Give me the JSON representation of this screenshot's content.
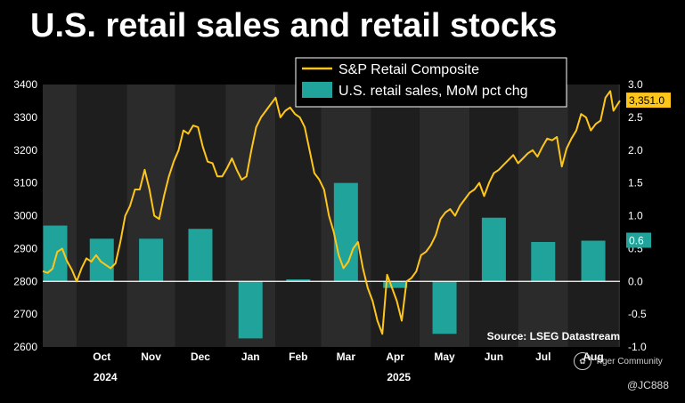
{
  "title": "U.S. retail sales and retail stocks",
  "chart_data": {
    "type": "bar+line",
    "title": "U.S. retail sales and retail stocks",
    "source": "Source: LSEG Datastream",
    "colors": {
      "line": "#ffc61a",
      "bar": "#1fa39a",
      "band_dark": "#1e1e1e",
      "band_light": "#2b2b2b",
      "zero_line": "#ffffff",
      "label_box": "#1fa39a",
      "price_box": "#ffc61a"
    },
    "left_axis": {
      "label": "S&P Retail Composite",
      "ylim": [
        2600,
        3400
      ],
      "ticks": [
        "2600",
        "2700",
        "2800",
        "2900",
        "3000",
        "3100",
        "3200",
        "3300",
        "3400"
      ]
    },
    "right_axis": {
      "label": "U.S. retail sales, MoM pct chg",
      "ylim": [
        -1.0,
        3.0
      ],
      "ticks": [
        "-1.0",
        "-0.5",
        "0.0",
        "0.5",
        "1.0",
        "1.5",
        "2.0",
        "2.5",
        "3.0"
      ]
    },
    "x_axis": {
      "start": "2024-09-10",
      "end": "2025-09-02",
      "month_labels": [
        "Oct",
        "Nov",
        "Dec",
        "Jan",
        "Feb",
        "Mar",
        "Apr",
        "May",
        "Jun",
        "Jul",
        "Aug"
      ],
      "year_labels": [
        {
          "label": "2024",
          "month": "Oct"
        },
        {
          "label": "2025",
          "month": "Apr"
        }
      ]
    },
    "legend": [
      {
        "label": "S&P Retail Composite",
        "kind": "line"
      },
      {
        "label": "U.S. retail sales, MoM pct chg",
        "kind": "bar"
      }
    ],
    "legend_position": "top-right",
    "series": [
      {
        "name": "U.S. retail sales, MoM pct chg",
        "kind": "bar",
        "axis": "right",
        "bars": [
          {
            "month": "Sep",
            "value": 0.85
          },
          {
            "month": "Oct",
            "value": 0.65
          },
          {
            "month": "Nov",
            "value": 0.65
          },
          {
            "month": "Dec",
            "value": 0.8
          },
          {
            "month": "Jan",
            "value": -0.87
          },
          {
            "month": "Feb",
            "value": 0.03
          },
          {
            "month": "Mar",
            "value": 1.5
          },
          {
            "month": "Apr",
            "value": -0.1
          },
          {
            "month": "May",
            "value": -0.8
          },
          {
            "month": "Jun",
            "value": 0.97
          },
          {
            "month": "Jul",
            "value": 0.6
          },
          {
            "month": "Aug",
            "value": 0.62
          }
        ],
        "last_value_label": "0.6"
      },
      {
        "name": "S&P Retail Composite",
        "kind": "line",
        "axis": "left",
        "points": [
          [
            "2024-09-10",
            2831
          ],
          [
            "2024-09-13",
            2826
          ],
          [
            "2024-09-16",
            2838
          ],
          [
            "2024-09-19",
            2890
          ],
          [
            "2024-09-22",
            2900
          ],
          [
            "2024-09-25",
            2862
          ],
          [
            "2024-09-28",
            2835
          ],
          [
            "2024-10-01",
            2800
          ],
          [
            "2024-10-04",
            2840
          ],
          [
            "2024-10-07",
            2870
          ],
          [
            "2024-10-10",
            2860
          ],
          [
            "2024-10-13",
            2880
          ],
          [
            "2024-10-16",
            2860
          ],
          [
            "2024-10-19",
            2850
          ],
          [
            "2024-10-22",
            2840
          ],
          [
            "2024-10-25",
            2855
          ],
          [
            "2024-10-28",
            2920
          ],
          [
            "2024-10-31",
            3000
          ],
          [
            "2024-11-03",
            3030
          ],
          [
            "2024-11-06",
            3080
          ],
          [
            "2024-11-09",
            3080
          ],
          [
            "2024-11-12",
            3140
          ],
          [
            "2024-11-15",
            3080
          ],
          [
            "2024-11-18",
            3000
          ],
          [
            "2024-11-21",
            2990
          ],
          [
            "2024-11-24",
            3060
          ],
          [
            "2024-11-27",
            3120
          ],
          [
            "2024-11-30",
            3165
          ],
          [
            "2024-12-03",
            3200
          ],
          [
            "2024-12-06",
            3260
          ],
          [
            "2024-12-09",
            3250
          ],
          [
            "2024-12-12",
            3275
          ],
          [
            "2024-12-15",
            3270
          ],
          [
            "2024-12-18",
            3210
          ],
          [
            "2024-12-21",
            3165
          ],
          [
            "2024-12-24",
            3160
          ],
          [
            "2024-12-27",
            3120
          ],
          [
            "2024-12-30",
            3120
          ],
          [
            "2025-01-02",
            3145
          ],
          [
            "2025-01-05",
            3175
          ],
          [
            "2025-01-08",
            3140
          ],
          [
            "2025-01-11",
            3110
          ],
          [
            "2025-01-14",
            3120
          ],
          [
            "2025-01-17",
            3200
          ],
          [
            "2025-01-20",
            3270
          ],
          [
            "2025-01-23",
            3300
          ],
          [
            "2025-01-26",
            3320
          ],
          [
            "2025-01-29",
            3340
          ],
          [
            "2025-02-01",
            3360
          ],
          [
            "2025-02-04",
            3300
          ],
          [
            "2025-02-07",
            3320
          ],
          [
            "2025-02-10",
            3330
          ],
          [
            "2025-02-13",
            3310
          ],
          [
            "2025-02-16",
            3300
          ],
          [
            "2025-02-19",
            3270
          ],
          [
            "2025-02-22",
            3200
          ],
          [
            "2025-02-25",
            3130
          ],
          [
            "2025-02-28",
            3110
          ],
          [
            "2025-03-03",
            3080
          ],
          [
            "2025-03-06",
            3000
          ],
          [
            "2025-03-09",
            2950
          ],
          [
            "2025-03-12",
            2880
          ],
          [
            "2025-03-15",
            2840
          ],
          [
            "2025-03-18",
            2860
          ],
          [
            "2025-03-21",
            2900
          ],
          [
            "2025-03-24",
            2920
          ],
          [
            "2025-03-27",
            2840
          ],
          [
            "2025-03-30",
            2780
          ],
          [
            "2025-04-02",
            2740
          ],
          [
            "2025-04-05",
            2680
          ],
          [
            "2025-04-08",
            2640
          ],
          [
            "2025-04-11",
            2820
          ],
          [
            "2025-04-14",
            2780
          ],
          [
            "2025-04-17",
            2740
          ],
          [
            "2025-04-20",
            2680
          ],
          [
            "2025-04-23",
            2800
          ],
          [
            "2025-04-26",
            2810
          ],
          [
            "2025-04-29",
            2830
          ],
          [
            "2025-05-02",
            2880
          ],
          [
            "2025-05-05",
            2890
          ],
          [
            "2025-05-08",
            2910
          ],
          [
            "2025-05-11",
            2940
          ],
          [
            "2025-05-14",
            2990
          ],
          [
            "2025-05-17",
            3010
          ],
          [
            "2025-05-20",
            3020
          ],
          [
            "2025-05-23",
            3000
          ],
          [
            "2025-05-26",
            3030
          ],
          [
            "2025-05-29",
            3050
          ],
          [
            "2025-06-01",
            3070
          ],
          [
            "2025-06-04",
            3080
          ],
          [
            "2025-06-07",
            3100
          ],
          [
            "2025-06-10",
            3060
          ],
          [
            "2025-06-13",
            3100
          ],
          [
            "2025-06-16",
            3130
          ],
          [
            "2025-06-19",
            3140
          ],
          [
            "2025-06-22",
            3155
          ],
          [
            "2025-06-25",
            3170
          ],
          [
            "2025-06-28",
            3185
          ],
          [
            "2025-07-01",
            3160
          ],
          [
            "2025-07-04",
            3175
          ],
          [
            "2025-07-07",
            3190
          ],
          [
            "2025-07-10",
            3200
          ],
          [
            "2025-07-13",
            3180
          ],
          [
            "2025-07-16",
            3210
          ],
          [
            "2025-07-19",
            3235
          ],
          [
            "2025-07-22",
            3230
          ],
          [
            "2025-07-25",
            3240
          ],
          [
            "2025-07-28",
            3150
          ],
          [
            "2025-07-31",
            3205
          ],
          [
            "2025-08-03",
            3235
          ],
          [
            "2025-08-06",
            3260
          ],
          [
            "2025-08-09",
            3310
          ],
          [
            "2025-08-12",
            3300
          ],
          [
            "2025-08-15",
            3260
          ],
          [
            "2025-08-18",
            3280
          ],
          [
            "2025-08-21",
            3290
          ],
          [
            "2025-08-24",
            3360
          ],
          [
            "2025-08-27",
            3380
          ],
          [
            "2025-08-29",
            3320
          ],
          [
            "2025-09-02",
            3351
          ]
        ],
        "last_value_label": "3,351.0"
      }
    ]
  },
  "watermark": {
    "brand": "Tiger Community",
    "logo_glyph": "✿"
  },
  "handle": "@JC888"
}
